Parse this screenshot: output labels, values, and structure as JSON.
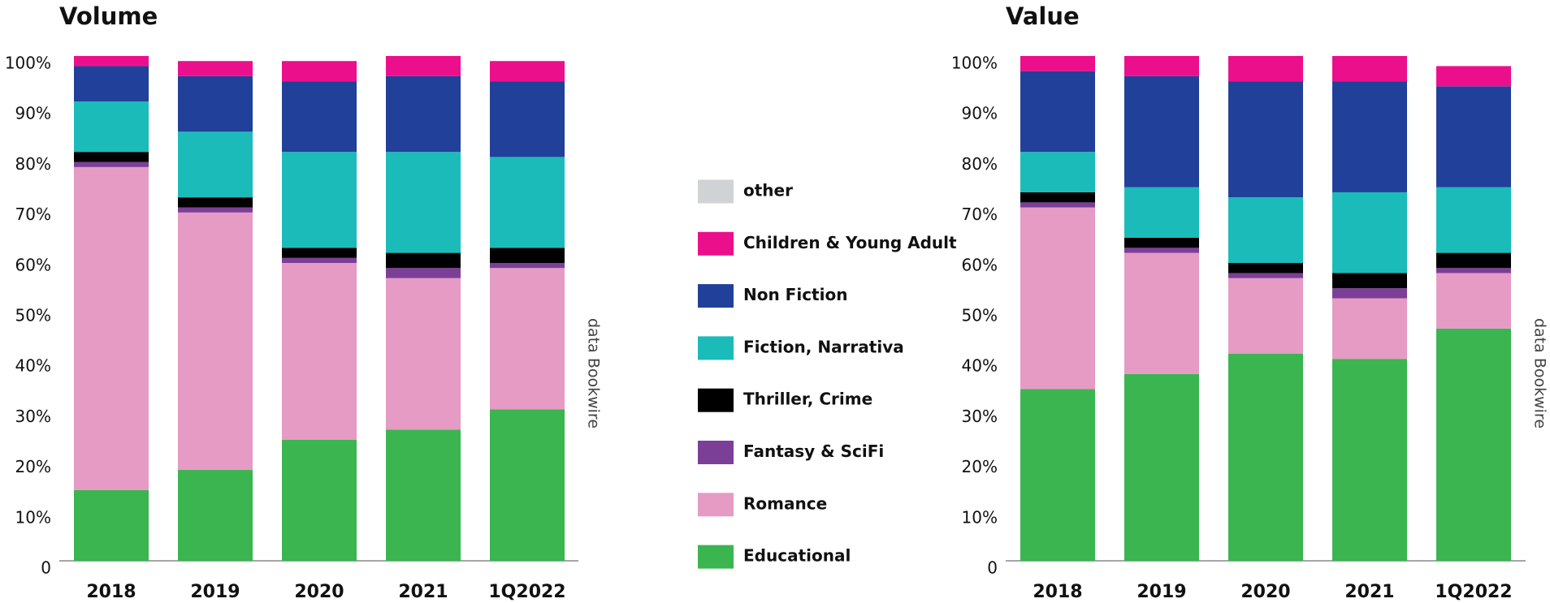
{
  "chart_data": [
    {
      "type": "stacked_bar",
      "title": "Volume",
      "source": "data Bookwire",
      "categories": [
        "2018",
        "2019",
        "2020",
        "2021",
        "1Q2022"
      ],
      "ylim": [
        0,
        100
      ],
      "yticks": [
        0,
        {
          "value": 10,
          "label": "10%"
        },
        {
          "value": 20,
          "label": "20%"
        },
        {
          "value": 30,
          "label": "30%"
        },
        {
          "value": 40,
          "label": "40%"
        },
        {
          "value": 50,
          "label": "50%"
        },
        {
          "value": 60,
          "label": "60%"
        },
        {
          "value": 70,
          "label": "70%"
        },
        {
          "value": 80,
          "label": "80%"
        },
        {
          "value": 90,
          "label": "90%"
        },
        {
          "value": 100,
          "label": "100%"
        }
      ],
      "series": [
        {
          "name": "Educational",
          "color": "#3ab54f",
          "values": [
            14,
            18,
            24,
            26,
            30
          ]
        },
        {
          "name": "Romance",
          "color": "#e59bc4",
          "values": [
            64,
            51,
            35,
            30,
            28
          ]
        },
        {
          "name": "Fantasy & SciFi",
          "color": "#7c3f98",
          "values": [
            1,
            1,
            1,
            2,
            1
          ]
        },
        {
          "name": "Thriller, Crime",
          "color": "#000000",
          "values": [
            2,
            2,
            2,
            3,
            3
          ]
        },
        {
          "name": "Fiction, Narrativa",
          "color": "#1bbbba",
          "values": [
            10,
            13,
            19,
            20,
            18
          ]
        },
        {
          "name": "Non Fiction",
          "color": "#21409a",
          "values": [
            7,
            11,
            14,
            15,
            15
          ]
        },
        {
          "name": "Children & Young Adult",
          "color": "#ec0f8c",
          "values": [
            2,
            3,
            4,
            4,
            4
          ]
        },
        {
          "name": "other",
          "color": "#d0d3d6",
          "values": [
            0,
            0,
            0,
            0,
            0
          ]
        }
      ]
    },
    {
      "type": "stacked_bar",
      "title": "Value",
      "source": "data Bookwire",
      "categories": [
        "2018",
        "2019",
        "2020",
        "2021",
        "1Q2022"
      ],
      "ylim": [
        0,
        100
      ],
      "yticks": [
        0,
        {
          "value": 10,
          "label": "10%"
        },
        {
          "value": 20,
          "label": "20%"
        },
        {
          "value": 30,
          "label": "30%"
        },
        {
          "value": 40,
          "label": "40%"
        },
        {
          "value": 50,
          "label": "50%"
        },
        {
          "value": 60,
          "label": "60%"
        },
        {
          "value": 70,
          "label": "70%"
        },
        {
          "value": 80,
          "label": "80%"
        },
        {
          "value": 90,
          "label": "90%"
        },
        {
          "value": 100,
          "label": "100%"
        }
      ],
      "series": [
        {
          "name": "Educational",
          "color": "#3ab54f",
          "values": [
            34,
            37,
            41,
            40,
            46
          ]
        },
        {
          "name": "Romance",
          "color": "#e59bc4",
          "values": [
            36,
            24,
            15,
            12,
            11
          ]
        },
        {
          "name": "Fantasy & SciFi",
          "color": "#7c3f98",
          "values": [
            1,
            1,
            1,
            2,
            1
          ]
        },
        {
          "name": "Thriller, Crime",
          "color": "#000000",
          "values": [
            2,
            2,
            2,
            3,
            3
          ]
        },
        {
          "name": "Fiction, Narrativa",
          "color": "#1bbbba",
          "values": [
            8,
            10,
            13,
            16,
            13
          ]
        },
        {
          "name": "Non Fiction",
          "color": "#21409a",
          "values": [
            16,
            22,
            23,
            22,
            20
          ]
        },
        {
          "name": "Children & Young Adult",
          "color": "#ec0f8c",
          "values": [
            3,
            4,
            5,
            5,
            4
          ]
        },
        {
          "name": "other",
          "color": "#d0d3d6",
          "values": [
            0,
            0,
            0,
            0,
            0
          ]
        }
      ]
    }
  ]
}
